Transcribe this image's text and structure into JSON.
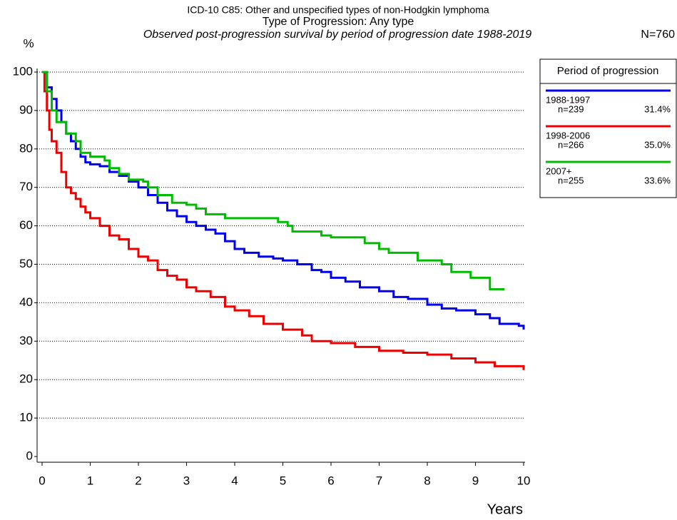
{
  "chart_data": {
    "type": "step",
    "title": "ICD-10 C85: Other and unspecified types of non-Hodgkin lymphoma",
    "subtitle": "Type of Progression: Any type",
    "description": "Observed post-progression survival by period of progression date 1988-2019",
    "total": "N=760",
    "y_label": "%",
    "x_label": "Years",
    "legend_title": "Period of progression",
    "xlim": [
      0,
      10
    ],
    "ylim": [
      0,
      100
    ],
    "xticks": [
      0,
      1,
      2,
      3,
      4,
      5,
      6,
      7,
      8,
      9,
      10
    ],
    "yticks": [
      0,
      10,
      20,
      30,
      40,
      50,
      60,
      70,
      80,
      90,
      100
    ],
    "grid": true,
    "series": [
      {
        "name": "1988-1997",
        "n_label": "n=239",
        "share": "31.4%",
        "color": "#0000ee",
        "x": [
          0,
          0.1,
          0.2,
          0.3,
          0.4,
          0.5,
          0.6,
          0.7,
          0.8,
          0.9,
          1.0,
          1.2,
          1.4,
          1.6,
          1.8,
          2.0,
          2.2,
          2.4,
          2.6,
          2.8,
          3.0,
          3.2,
          3.4,
          3.6,
          3.8,
          4.0,
          4.2,
          4.5,
          4.8,
          5.0,
          5.3,
          5.6,
          5.8,
          6.0,
          6.3,
          6.6,
          7.0,
          7.3,
          7.6,
          8.0,
          8.3,
          8.6,
          9.0,
          9.3,
          9.5,
          9.9,
          10
        ],
        "values": [
          100,
          96,
          93,
          90,
          87,
          84,
          82,
          80,
          78,
          76.5,
          76,
          75.5,
          74,
          73,
          71.5,
          70,
          68,
          66,
          64,
          62.5,
          61,
          60,
          59,
          58,
          56,
          54,
          53,
          52,
          51.5,
          51,
          50,
          48.5,
          48,
          46.5,
          45.5,
          44,
          43,
          41.5,
          41,
          39.5,
          38.5,
          38,
          37,
          36,
          34.5,
          34,
          33
        ]
      },
      {
        "name": "1998-2006",
        "n_label": "n=266",
        "share": "35.0%",
        "color": "#ee0000",
        "x": [
          0,
          0.05,
          0.1,
          0.15,
          0.2,
          0.3,
          0.4,
          0.5,
          0.6,
          0.7,
          0.8,
          0.9,
          1.0,
          1.2,
          1.4,
          1.6,
          1.8,
          2.0,
          2.2,
          2.4,
          2.6,
          2.8,
          3.0,
          3.2,
          3.5,
          3.8,
          4.0,
          4.3,
          4.6,
          5.0,
          5.4,
          5.6,
          6.0,
          6.5,
          7.0,
          7.5,
          8.0,
          8.5,
          9.0,
          9.4,
          10
        ],
        "values": [
          100,
          95,
          90,
          85,
          82,
          79,
          74,
          70,
          68.5,
          67,
          65,
          63.5,
          62,
          60,
          57.5,
          56.5,
          54,
          52,
          51,
          48.5,
          47,
          46,
          44,
          43,
          41.5,
          39,
          38,
          36.5,
          34.5,
          33,
          31.5,
          30,
          29.5,
          28.5,
          27.5,
          27,
          26.5,
          25.5,
          24.5,
          23.5,
          22.5
        ]
      },
      {
        "name": "2007+",
        "n_label": "n=255",
        "share": "33.6%",
        "color": "#00bb00",
        "x": [
          0,
          0.1,
          0.2,
          0.3,
          0.5,
          0.7,
          0.8,
          1.0,
          1.3,
          1.4,
          1.6,
          1.8,
          2.1,
          2.2,
          2.4,
          2.7,
          3.0,
          3.2,
          3.4,
          3.8,
          4.5,
          4.9,
          5.1,
          5.2,
          5.8,
          6.0,
          6.7,
          7.0,
          7.2,
          7.8,
          8.3,
          8.5,
          8.9,
          9.3,
          9.6
        ],
        "values": [
          100,
          95,
          90,
          87,
          84,
          82,
          79,
          78,
          77,
          75,
          73.5,
          72,
          71.5,
          70,
          68,
          66,
          65.5,
          64.5,
          63,
          62,
          62,
          61,
          60,
          58.5,
          57.5,
          57,
          55.5,
          54,
          53,
          51,
          50,
          48,
          46.5,
          43.5,
          43.5
        ]
      }
    ]
  }
}
